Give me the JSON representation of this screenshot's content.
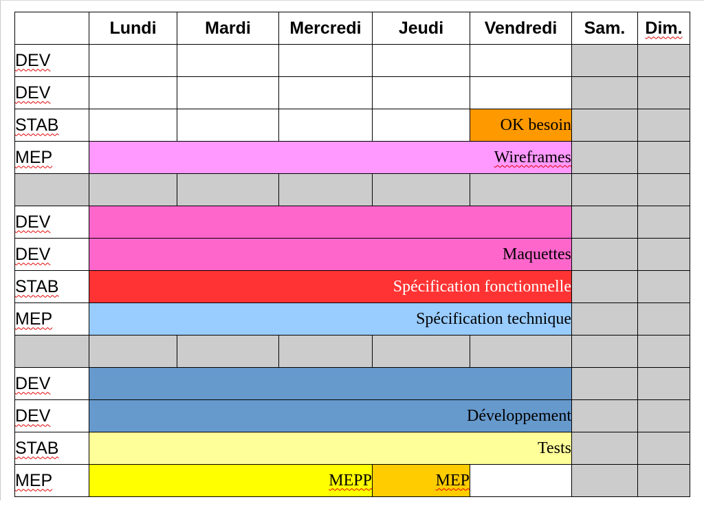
{
  "header": {
    "blank": "",
    "days": [
      "Lundi",
      "Mardi",
      "Mercredi",
      "Jeudi",
      "Vendredi",
      "Sam.",
      "Dim."
    ]
  },
  "labels": [
    "DEV",
    "DEV",
    "STAB",
    "MEP",
    "DEV",
    "DEV",
    "STAB",
    "MEP",
    "DEV",
    "DEV",
    "STAB",
    "MEP"
  ],
  "tasks": {
    "ok_besoin": "OK besoin",
    "wireframes": "Wireframes",
    "maquettes": "Maquettes",
    "spec_fonctionnelle": "Spécification fonctionnelle",
    "spec_technique": "Spécification technique",
    "developpement": "Développement",
    "tests": "Tests",
    "mepp": "MEPP",
    "mep": "MEP"
  },
  "colors": {
    "weekend_gray": "#cccccc",
    "ok_besoin": "#ff9900",
    "wireframes": "#ff99ff",
    "maquettes": "#ff66cc",
    "spec_fonctionnelle": "#ff3333",
    "spec_technique": "#99ccff",
    "developpement": "#6699cc",
    "tests": "#ffff99",
    "mepp": "#ffff00",
    "mep": "#ffcc00"
  }
}
